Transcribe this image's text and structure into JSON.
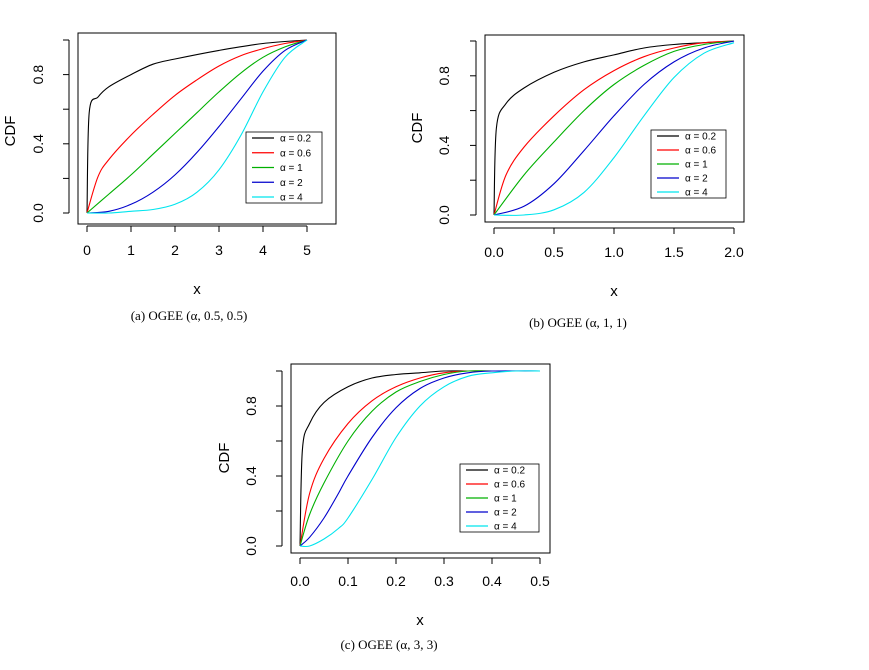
{
  "colors": {
    "black": "#000000",
    "red": "#ff0000",
    "green": "#00b000",
    "blue": "#0000cc",
    "cyan": "#00e5ee"
  },
  "chart_data": [
    {
      "type": "line",
      "caption": "(a)   OGEE (α, 0.5, 0.5)",
      "xlabel": "x",
      "ylabel": "CDF",
      "xlim": [
        0,
        5
      ],
      "ylim": [
        0,
        1
      ],
      "xticks": [
        "0",
        "1",
        "2",
        "3",
        "4",
        "5"
      ],
      "yticks": [
        "0.0",
        "0.4",
        "0.8"
      ],
      "ytick_values": [
        0,
        0.4,
        0.8
      ],
      "legend_position": "right",
      "series": [
        {
          "name": "α = 0.2",
          "color": "#000000",
          "x": [
            0,
            0.05,
            0.25,
            0.5,
            1,
            1.5,
            2,
            3,
            4,
            5
          ],
          "y": [
            0,
            0.58,
            0.67,
            0.73,
            0.8,
            0.86,
            0.89,
            0.94,
            0.98,
            1.0
          ]
        },
        {
          "name": "α = 0.6",
          "color": "#ff0000",
          "x": [
            0,
            0.25,
            0.5,
            1,
            1.5,
            2,
            2.5,
            3,
            3.5,
            4,
            4.5,
            5
          ],
          "y": [
            0,
            0.21,
            0.31,
            0.45,
            0.57,
            0.68,
            0.77,
            0.85,
            0.91,
            0.95,
            0.98,
            1.0
          ]
        },
        {
          "name": "α = 1",
          "color": "#00b000",
          "x": [
            0,
            0.5,
            1,
            1.5,
            2,
            2.5,
            3,
            3.5,
            4,
            4.5,
            5
          ],
          "y": [
            0,
            0.11,
            0.22,
            0.34,
            0.46,
            0.58,
            0.7,
            0.81,
            0.9,
            0.96,
            1.0
          ]
        },
        {
          "name": "α = 2",
          "color": "#0000cc",
          "x": [
            0,
            0.5,
            1,
            1.5,
            2,
            2.5,
            3,
            3.5,
            4,
            4.5,
            5
          ],
          "y": [
            0,
            0.01,
            0.05,
            0.12,
            0.22,
            0.35,
            0.5,
            0.66,
            0.82,
            0.94,
            1.0
          ]
        },
        {
          "name": "α = 4",
          "color": "#00e5ee",
          "x": [
            0,
            0.5,
            1,
            1.5,
            2,
            2.5,
            3,
            3.5,
            4,
            4.5,
            5
          ],
          "y": [
            0,
            0.0,
            0.01,
            0.02,
            0.05,
            0.12,
            0.25,
            0.45,
            0.7,
            0.9,
            1.0
          ]
        }
      ]
    },
    {
      "type": "line",
      "caption": "(b) OGEE (α, 1, 1)",
      "xlabel": "x",
      "ylabel": "CDF",
      "xlim": [
        0,
        2
      ],
      "ylim": [
        0,
        1
      ],
      "xticks": [
        "0.0",
        "0.5",
        "1.0",
        "1.5",
        "2.0"
      ],
      "yticks": [
        "0.0",
        "0.4",
        "0.8"
      ],
      "ytick_values": [
        0,
        0.4,
        0.8
      ],
      "legend_position": "right",
      "series": [
        {
          "name": "α = 0.2",
          "color": "#000000",
          "x": [
            0,
            0.02,
            0.1,
            0.25,
            0.5,
            0.75,
            1,
            1.25,
            1.5,
            1.75,
            2
          ],
          "y": [
            0,
            0.5,
            0.64,
            0.73,
            0.82,
            0.88,
            0.92,
            0.96,
            0.98,
            0.99,
            1.0
          ]
        },
        {
          "name": "α = 0.6",
          "color": "#ff0000",
          "x": [
            0,
            0.1,
            0.25,
            0.5,
            0.75,
            1,
            1.25,
            1.5,
            1.75,
            2
          ],
          "y": [
            0,
            0.23,
            0.39,
            0.57,
            0.72,
            0.83,
            0.91,
            0.96,
            0.99,
            1.0
          ]
        },
        {
          "name": "α = 1",
          "color": "#00b000",
          "x": [
            0,
            0.25,
            0.5,
            0.75,
            1,
            1.25,
            1.5,
            1.75,
            2
          ],
          "y": [
            0,
            0.23,
            0.42,
            0.6,
            0.75,
            0.86,
            0.94,
            0.98,
            1.0
          ]
        },
        {
          "name": "α = 2",
          "color": "#0000cc",
          "x": [
            0,
            0.25,
            0.5,
            0.75,
            1,
            1.25,
            1.5,
            1.75,
            2
          ],
          "y": [
            0,
            0.05,
            0.18,
            0.37,
            0.57,
            0.75,
            0.88,
            0.96,
            1.0
          ]
        },
        {
          "name": "α = 4",
          "color": "#00e5ee",
          "x": [
            0,
            0.25,
            0.5,
            0.75,
            1,
            1.25,
            1.5,
            1.75,
            2
          ],
          "y": [
            0,
            0.0,
            0.03,
            0.13,
            0.33,
            0.57,
            0.79,
            0.93,
            0.99
          ]
        }
      ]
    },
    {
      "type": "line",
      "caption": "(c) OGEE (α, 3, 3)",
      "xlabel": "x",
      "ylabel": "CDF",
      "xlim": [
        0,
        0.5
      ],
      "ylim": [
        0,
        1
      ],
      "xticks": [
        "0.0",
        "0.1",
        "0.2",
        "0.3",
        "0.4",
        "0.5"
      ],
      "yticks": [
        "0.0",
        "0.4",
        "0.8"
      ],
      "ytick_values": [
        0,
        0.4,
        0.8
      ],
      "legend_position": "right",
      "series": [
        {
          "name": "α = 0.2",
          "color": "#000000",
          "x": [
            0,
            0.005,
            0.02,
            0.05,
            0.1,
            0.15,
            0.2,
            0.25,
            0.3,
            0.35,
            0.4,
            0.5
          ],
          "y": [
            0,
            0.55,
            0.7,
            0.82,
            0.91,
            0.96,
            0.98,
            0.99,
            1.0,
            1.0,
            1.0,
            1.0
          ]
        },
        {
          "name": "α = 0.6",
          "color": "#ff0000",
          "x": [
            0,
            0.02,
            0.05,
            0.1,
            0.15,
            0.2,
            0.25,
            0.3,
            0.35,
            0.4,
            0.5
          ],
          "y": [
            0,
            0.3,
            0.5,
            0.7,
            0.83,
            0.91,
            0.96,
            0.99,
            1.0,
            1.0,
            1.0
          ]
        },
        {
          "name": "α = 1",
          "color": "#00b000",
          "x": [
            0,
            0.02,
            0.05,
            0.1,
            0.15,
            0.2,
            0.25,
            0.3,
            0.35,
            0.4,
            0.5
          ],
          "y": [
            0,
            0.18,
            0.36,
            0.6,
            0.77,
            0.88,
            0.94,
            0.98,
            1.0,
            1.0,
            1.0
          ]
        },
        {
          "name": "α = 2",
          "color": "#0000cc",
          "x": [
            0,
            0.02,
            0.05,
            0.08,
            0.1,
            0.15,
            0.2,
            0.25,
            0.3,
            0.35,
            0.4,
            0.5
          ],
          "y": [
            0,
            0.05,
            0.16,
            0.3,
            0.4,
            0.62,
            0.79,
            0.9,
            0.96,
            0.99,
            1.0,
            1.0
          ]
        },
        {
          "name": "α = 4",
          "color": "#00e5ee",
          "x": [
            0,
            0.02,
            0.05,
            0.08,
            0.1,
            0.15,
            0.2,
            0.25,
            0.3,
            0.35,
            0.4,
            0.45,
            0.5
          ],
          "y": [
            0,
            0.0,
            0.04,
            0.1,
            0.16,
            0.38,
            0.62,
            0.8,
            0.91,
            0.97,
            0.99,
            1.0,
            1.0
          ]
        }
      ]
    }
  ]
}
